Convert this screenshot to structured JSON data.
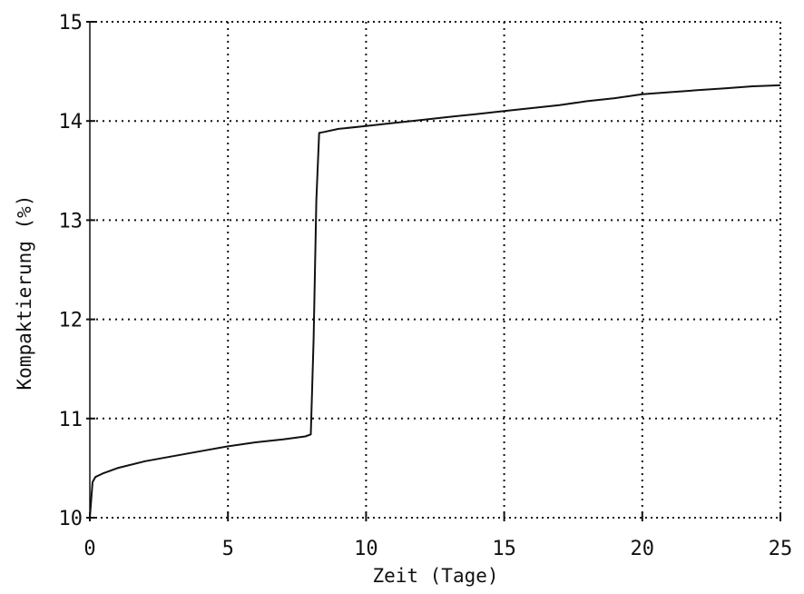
{
  "chart_data": {
    "type": "line",
    "title": "",
    "xlabel": "Zeit (Tage)",
    "ylabel": "Kompaktierung (%)",
    "xlim": [
      0,
      25
    ],
    "ylim": [
      10,
      15
    ],
    "xticks": [
      0,
      5,
      10,
      15,
      20,
      25
    ],
    "yticks": [
      10,
      11,
      12,
      13,
      14,
      15
    ],
    "xtick_labels": [
      "0",
      "5",
      "10",
      "15",
      "20",
      "25"
    ],
    "ytick_labels": [
      "10",
      "11",
      "12",
      "13",
      "14",
      "15"
    ],
    "grid": true,
    "series": [
      {
        "x": [
          0.0,
          0.1,
          0.2,
          0.5,
          1,
          2,
          3,
          4,
          5,
          6,
          7,
          7.8,
          8.0,
          8.1,
          8.2,
          8.3,
          8.5,
          9,
          10,
          11,
          12,
          13,
          14,
          15,
          16,
          17,
          18,
          19,
          20,
          21,
          22,
          23,
          24,
          25
        ],
        "y": [
          10.0,
          10.36,
          10.41,
          10.45,
          10.5,
          10.57,
          10.62,
          10.67,
          10.72,
          10.76,
          10.79,
          10.82,
          10.84,
          11.8,
          13.2,
          13.88,
          13.89,
          13.92,
          13.95,
          13.98,
          14.01,
          14.04,
          14.07,
          14.1,
          14.13,
          14.16,
          14.2,
          14.23,
          14.27,
          14.29,
          14.31,
          14.33,
          14.35,
          14.36
        ]
      }
    ],
    "colors": {
      "line": "#111111",
      "grid": "#111111",
      "background": "#ffffff"
    }
  }
}
